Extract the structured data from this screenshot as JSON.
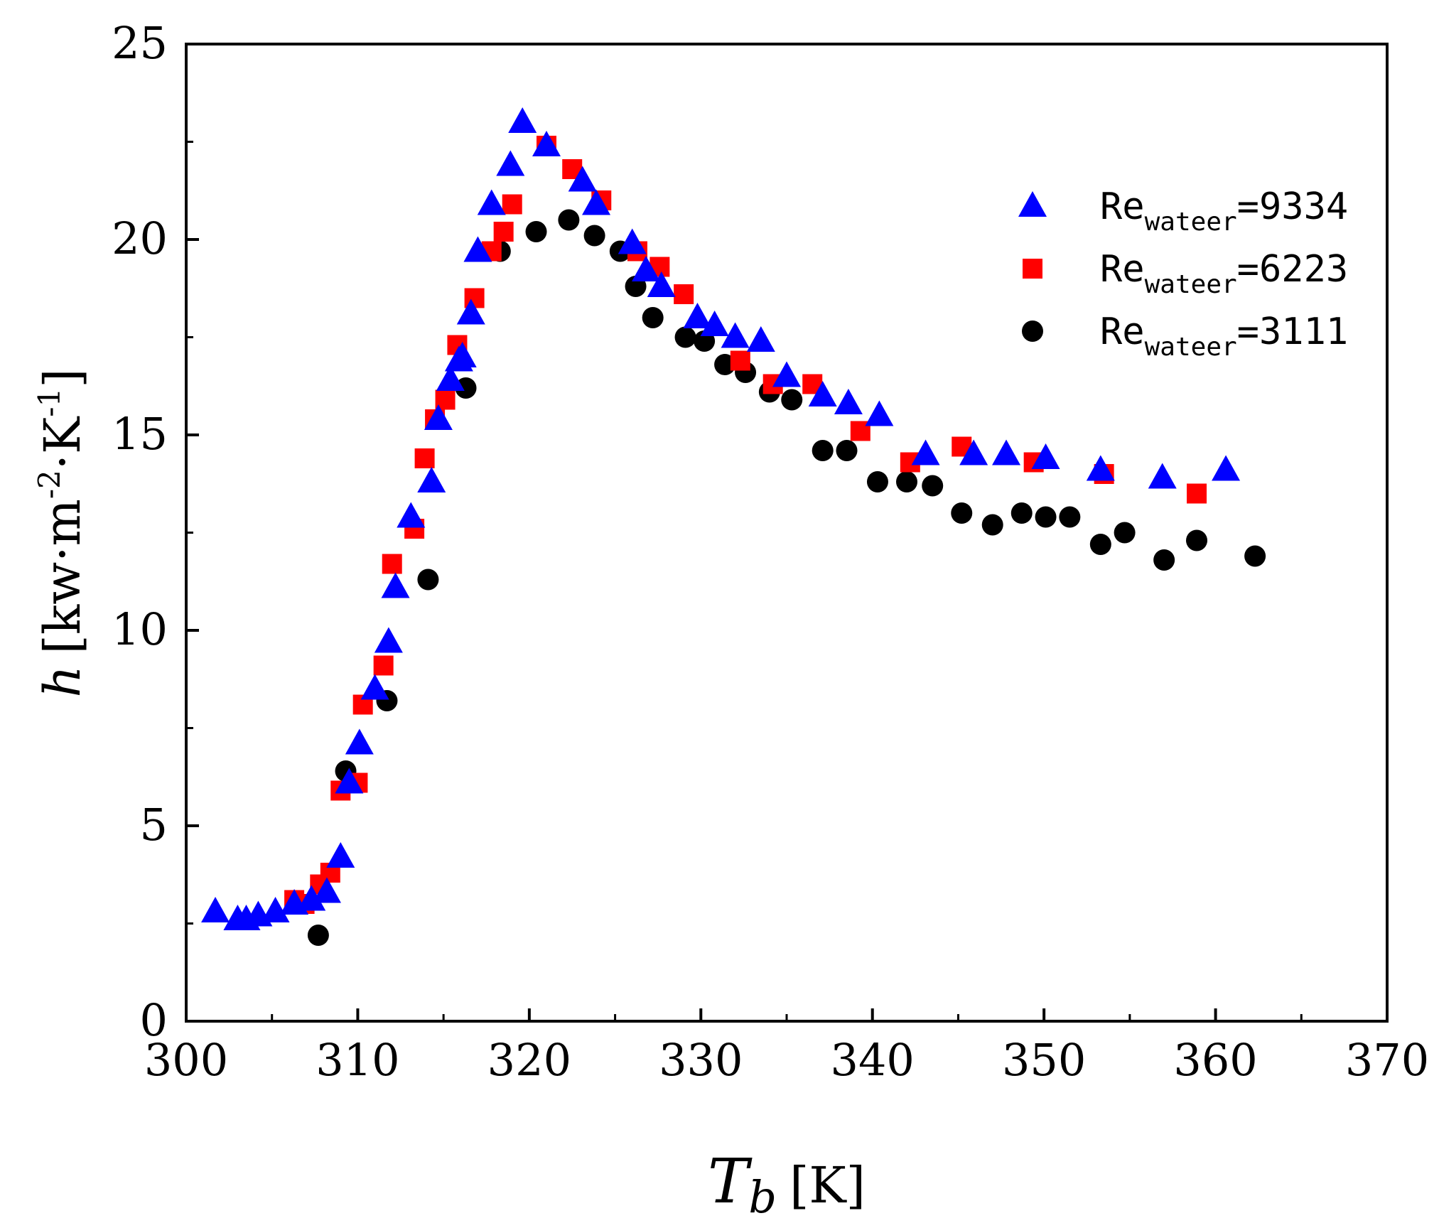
{
  "chart_data": {
    "type": "scatter",
    "title": "",
    "xlabel": {
      "symbol": "T",
      "subscript": "b",
      "unit": "[K]"
    },
    "ylabel": {
      "symbol": "h",
      "unit_prefix": "[kw·m",
      "exp1": "-2",
      "unit_mid": "·K",
      "exp2": "-1",
      "unit_suffix": "]"
    },
    "xlim": [
      300,
      370
    ],
    "ylim": [
      0,
      25
    ],
    "xticks": [
      300,
      310,
      320,
      330,
      340,
      350,
      360,
      370
    ],
    "yticks": [
      0,
      5,
      10,
      15,
      20,
      25
    ],
    "legend_position": "top-right",
    "series": [
      {
        "name": "Re_wateer=9334",
        "label_main": "Re",
        "label_sub": "wateer",
        "label_value": "=9334",
        "marker": "triangle",
        "color": "#0000ff",
        "x": [
          301.7,
          303.0,
          303.5,
          304.2,
          305.2,
          306.3,
          307.3,
          308.2,
          309.0,
          309.5,
          310.1,
          311.0,
          311.8,
          312.2,
          313.1,
          314.3,
          314.7,
          315.4,
          315.9,
          316.1,
          316.6,
          317.0,
          317.8,
          318.9,
          319.6,
          321.0,
          323.1,
          323.9,
          326.0,
          326.8,
          327.7,
          329.8,
          330.8,
          332.0,
          333.5,
          335.0,
          337.1,
          338.6,
          340.4,
          343.1,
          345.9,
          347.8,
          350.1,
          353.3,
          356.9,
          360.6
        ],
        "y": [
          2.8,
          2.6,
          2.6,
          2.7,
          2.8,
          3.0,
          3.1,
          3.3,
          4.2,
          6.1,
          7.1,
          8.5,
          9.7,
          11.1,
          12.9,
          13.8,
          15.4,
          16.4,
          16.9,
          17.0,
          18.1,
          19.7,
          20.9,
          21.9,
          23.0,
          22.4,
          21.5,
          20.9,
          19.9,
          19.2,
          18.8,
          18.0,
          17.8,
          17.5,
          17.4,
          16.5,
          16.0,
          15.8,
          15.5,
          14.5,
          14.5,
          14.5,
          14.4,
          14.1,
          13.9,
          14.1
        ]
      },
      {
        "name": "Re_wateer=6223",
        "label_main": "Re",
        "label_sub": "wateer",
        "label_value": "=6223",
        "marker": "square",
        "color": "#ff0000",
        "x": [
          306.3,
          306.9,
          307.8,
          308.4,
          309.0,
          310.0,
          310.3,
          311.5,
          312.0,
          313.3,
          313.9,
          314.5,
          315.1,
          315.8,
          316.8,
          317.8,
          318.5,
          319.0,
          321.0,
          322.5,
          324.2,
          326.3,
          327.6,
          329.0,
          332.3,
          334.2,
          336.5,
          339.3,
          342.2,
          345.2,
          349.4,
          353.5,
          358.9
        ],
        "y": [
          3.1,
          3.0,
          3.5,
          3.8,
          5.9,
          6.1,
          8.1,
          9.1,
          11.7,
          12.6,
          14.4,
          15.4,
          15.9,
          17.3,
          18.5,
          19.7,
          20.2,
          20.9,
          22.4,
          21.8,
          21.0,
          19.7,
          19.3,
          18.6,
          16.9,
          16.3,
          16.3,
          15.1,
          14.3,
          14.7,
          14.3,
          14.0,
          13.5
        ]
      },
      {
        "name": "Re_wateer=3111",
        "label_main": "Re",
        "label_sub": "wateer",
        "label_value": "=3111",
        "marker": "circle",
        "color": "#000000",
        "x": [
          307.7,
          309.3,
          311.7,
          314.1,
          316.3,
          318.3,
          320.4,
          322.3,
          323.8,
          325.3,
          326.2,
          327.2,
          329.1,
          330.2,
          331.4,
          332.6,
          334.0,
          335.3,
          337.1,
          338.5,
          340.3,
          342.0,
          343.5,
          345.2,
          347.0,
          348.7,
          350.1,
          351.5,
          353.3,
          354.7,
          357.0,
          358.9,
          362.3
        ],
        "y": [
          2.2,
          6.4,
          8.2,
          11.3,
          16.2,
          19.7,
          20.2,
          20.5,
          20.1,
          19.7,
          18.8,
          18.0,
          17.5,
          17.4,
          16.8,
          16.6,
          16.1,
          15.9,
          14.6,
          14.6,
          13.8,
          13.8,
          13.7,
          13.0,
          12.7,
          13.0,
          12.9,
          12.9,
          12.2,
          12.5,
          11.8,
          12.3,
          11.9
        ]
      }
    ]
  }
}
